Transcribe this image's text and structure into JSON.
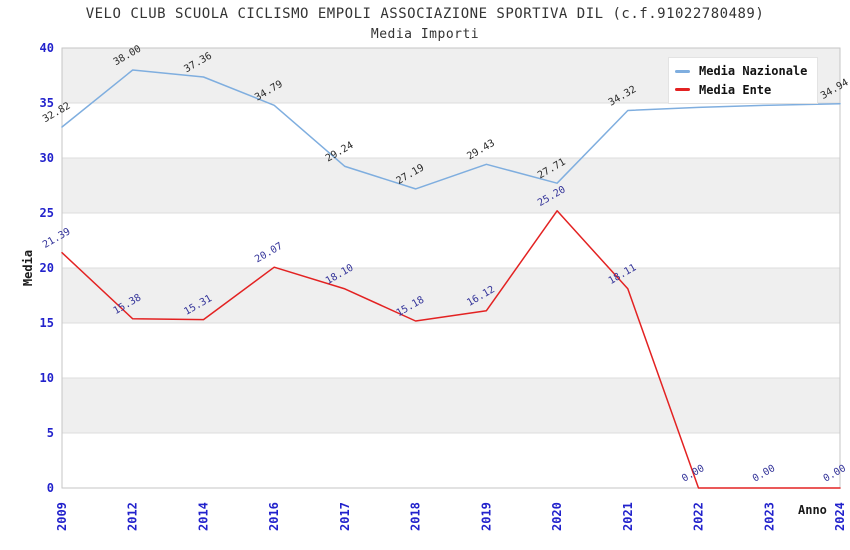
{
  "chart_data": {
    "type": "line",
    "title": "VELO CLUB SCUOLA CICLISMO EMPOLI ASSOCIAZIONE SPORTIVA DIL (c.f.91022780489)",
    "subtitle": "Media Importi",
    "xlabel": "Anno",
    "ylabel": "Media",
    "ylim": [
      0,
      40
    ],
    "y_ticks": [
      "0",
      "5",
      "10",
      "15",
      "20",
      "25",
      "30",
      "35",
      "40"
    ],
    "grid": "horizontal-bands-alternating",
    "legend_position": "top-right",
    "categories": [
      "2009",
      "2012",
      "2014",
      "2016",
      "2017",
      "2018",
      "2019",
      "2020",
      "2021",
      "2022",
      "2023",
      "2024"
    ],
    "series": [
      {
        "name": "Media Nazionale",
        "color": "#7FAEDF",
        "label_color": "#2a2a2a",
        "values": [
          32.82,
          38.0,
          37.36,
          34.79,
          29.24,
          27.19,
          29.43,
          27.71,
          34.32,
          34.6,
          34.8,
          34.94
        ],
        "labels": [
          "32.82",
          "38.00",
          "37.36",
          "34.79",
          "29.24",
          "27.19",
          "29.43",
          "27.71",
          "34.32",
          null,
          null,
          "34.94"
        ]
      },
      {
        "name": "Media Ente",
        "color": "#E32222",
        "label_color": "#333399",
        "values": [
          21.39,
          15.38,
          15.31,
          20.07,
          18.1,
          15.18,
          16.12,
          25.2,
          18.11,
          0.0,
          0.0,
          0.0
        ],
        "labels": [
          "21.39",
          "15.38",
          "15.31",
          "20.07",
          "18.10",
          "15.18",
          "16.12",
          "25.20",
          "18.11",
          "0.00",
          "0.00",
          "0.00"
        ]
      }
    ],
    "colors": {
      "band_light": "#FFFFFF",
      "band_dark": "#EFEFEF",
      "grid_line": "#DEDEDE",
      "plot_border": "#C6C6C6",
      "tick_label": "#2222CC",
      "title_text": "#333333"
    }
  }
}
